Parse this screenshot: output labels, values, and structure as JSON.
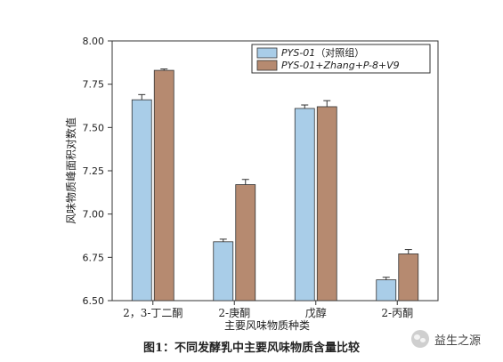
{
  "chart_data": {
    "type": "bar",
    "title": "",
    "xlabel": "主要风味物质种类",
    "ylabel": "风味物质峰面积对数值",
    "ylim": [
      6.5,
      8.0
    ],
    "yticks": [
      "8.00",
      "7.75",
      "7.50",
      "7.25",
      "7.00",
      "6.75",
      "6.50"
    ],
    "ytick_values": [
      8.0,
      7.75,
      7.5,
      7.25,
      7.0,
      6.75,
      6.5
    ],
    "categories": [
      "2，3-丁二酮",
      "2-庚酮",
      "戊醇",
      "2-丙酮"
    ],
    "series": [
      {
        "name": "PYS-01（对照组）",
        "color": "#a9cde8",
        "values": [
          7.66,
          6.84,
          7.61,
          6.62
        ],
        "errors": [
          0.03,
          0.015,
          0.02,
          0.015
        ]
      },
      {
        "name": "PYS-01+Zhang+P-8+V9",
        "color": "#b68a70",
        "values": [
          7.83,
          7.17,
          7.62,
          6.77
        ],
        "errors": [
          0.008,
          0.03,
          0.035,
          0.025
        ]
      }
    ],
    "legend_position": "top-right",
    "grid": false,
    "error_bars": true
  },
  "legend": {
    "series1_italic": "PYS-01",
    "series1_rest": "（对照组）",
    "series2_italic": "PYS-01+Zhang+P-8+V9"
  },
  "caption": "图1：不同发酵乳中主要风味物质含量比较",
  "watermark": "益生之源"
}
